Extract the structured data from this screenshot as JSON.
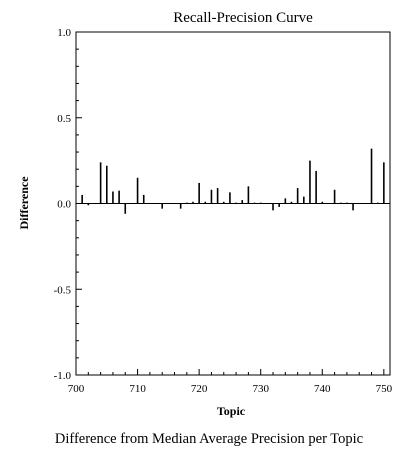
{
  "chart_data": {
    "type": "bar",
    "title": "Recall-Precision Curve",
    "xlabel": "Topic",
    "ylabel": "Difference",
    "caption": "Difference from Median Average Precision per Topic",
    "xlim": [
      700,
      751
    ],
    "ylim": [
      -1.0,
      1.0
    ],
    "x_ticks": [
      "700",
      "710",
      "720",
      "730",
      "740",
      "750"
    ],
    "y_ticks": [
      "1.0",
      "0.5",
      "0.0",
      "-0.5",
      "-1.0"
    ],
    "grid": false,
    "x": [
      701,
      702,
      703,
      704,
      705,
      706,
      707,
      708,
      709,
      710,
      711,
      712,
      713,
      714,
      715,
      716,
      717,
      718,
      719,
      720,
      721,
      722,
      723,
      724,
      725,
      726,
      727,
      728,
      729,
      730,
      731,
      732,
      733,
      734,
      735,
      736,
      737,
      738,
      739,
      740,
      741,
      742,
      743,
      744,
      745,
      746,
      747,
      748,
      749,
      750
    ],
    "values": [
      0.05,
      -0.01,
      0.0,
      0.24,
      0.22,
      0.07,
      0.075,
      -0.06,
      0.0,
      0.15,
      0.05,
      0.0,
      0.0,
      -0.03,
      0.0,
      0.0,
      -0.03,
      0.005,
      0.01,
      0.12,
      0.01,
      0.08,
      0.09,
      0.01,
      0.065,
      0.005,
      0.02,
      0.1,
      0.005,
      0.005,
      0.0,
      -0.04,
      -0.02,
      0.03,
      0.01,
      0.09,
      0.04,
      0.25,
      0.19,
      0.01,
      0.0,
      0.08,
      0.005,
      0.005,
      -0.04,
      0.0,
      0.0,
      0.32,
      0.005,
      0.24
    ]
  }
}
